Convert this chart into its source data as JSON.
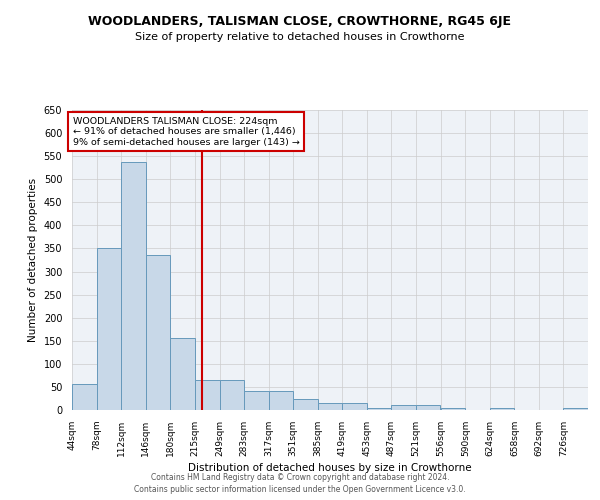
{
  "title": "WOODLANDERS, TALISMAN CLOSE, CROWTHORNE, RG45 6JE",
  "subtitle": "Size of property relative to detached houses in Crowthorne",
  "xlabel": "Distribution of detached houses by size in Crowthorne",
  "ylabel": "Number of detached properties",
  "bar_color": "#c8d8e8",
  "bar_edge_color": "#6699bb",
  "background_color": "#eef2f7",
  "grid_color": "#cccccc",
  "bin_labels": [
    "44sqm",
    "78sqm",
    "112sqm",
    "146sqm",
    "180sqm",
    "215sqm",
    "249sqm",
    "283sqm",
    "317sqm",
    "351sqm",
    "385sqm",
    "419sqm",
    "453sqm",
    "487sqm",
    "521sqm",
    "556sqm",
    "590sqm",
    "624sqm",
    "658sqm",
    "692sqm",
    "726sqm"
  ],
  "bin_edges": [
    44,
    78,
    112,
    146,
    180,
    215,
    249,
    283,
    317,
    351,
    385,
    419,
    453,
    487,
    521,
    556,
    590,
    624,
    658,
    692,
    726
  ],
  "bin_width": 34,
  "bar_heights": [
    57,
    352,
    537,
    335,
    155,
    65,
    65,
    42,
    42,
    24,
    15,
    15,
    5,
    10,
    10,
    5,
    0,
    5,
    0,
    0,
    5
  ],
  "property_size": 224,
  "property_label": "WOODLANDERS TALISMAN CLOSE: 224sqm",
  "pct_smaller": 91,
  "n_smaller": 1446,
  "pct_larger": 9,
  "n_larger": 143,
  "vline_color": "#cc0000",
  "annotation_box_color": "#cc0000",
  "ylim": [
    0,
    650
  ],
  "yticks": [
    0,
    50,
    100,
    150,
    200,
    250,
    300,
    350,
    400,
    450,
    500,
    550,
    600,
    650
  ],
  "footer1": "Contains HM Land Registry data © Crown copyright and database right 2024.",
  "footer2": "Contains public sector information licensed under the Open Government Licence v3.0."
}
